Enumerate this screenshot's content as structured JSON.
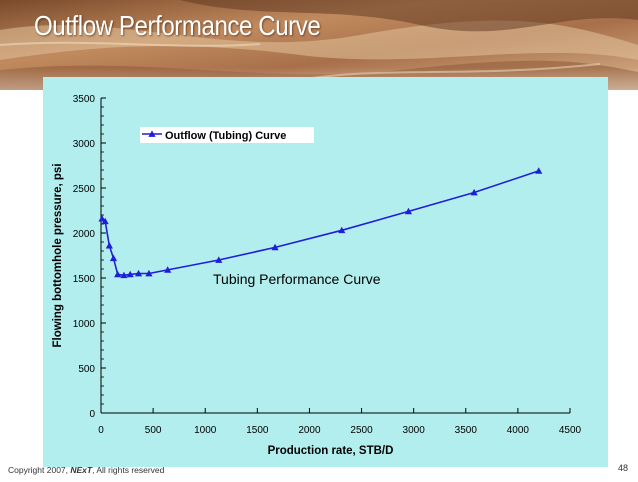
{
  "slide": {
    "title": "Outflow Performance Curve",
    "copyright_prefix": "Copyright 2007, ",
    "copyright_brand": "NExT",
    "copyright_suffix": ", All rights reserved",
    "page_number": "48"
  },
  "colors": {
    "plot_background": "#b3eeee",
    "series": "#1f1fd8",
    "axis_text": "#000000"
  },
  "chart_data": {
    "type": "line",
    "title": "",
    "xlabel": "Production rate, STB/D",
    "ylabel": "Flowing bottomhole pressure, psi",
    "xlim": [
      0,
      4500
    ],
    "ylim": [
      0,
      3500
    ],
    "xticks": [
      0,
      500,
      1000,
      1500,
      2000,
      2500,
      3000,
      3500,
      4000,
      4500
    ],
    "yticks": [
      0,
      500,
      1000,
      1500,
      2000,
      2500,
      3000,
      3500
    ],
    "grid": false,
    "legend_position": "top",
    "annotation": "Tubing Performance Curve",
    "series": [
      {
        "name": "Outflow (Tubing) Curve",
        "marker": "triangle",
        "x": [
          10,
          40,
          80,
          120,
          160,
          220,
          280,
          360,
          460,
          640,
          1130,
          1670,
          2310,
          2950,
          3580,
          4200
        ],
        "y": [
          2160,
          2130,
          1860,
          1720,
          1540,
          1530,
          1540,
          1550,
          1550,
          1590,
          1700,
          1840,
          2030,
          2240,
          2450,
          2690
        ]
      }
    ]
  }
}
